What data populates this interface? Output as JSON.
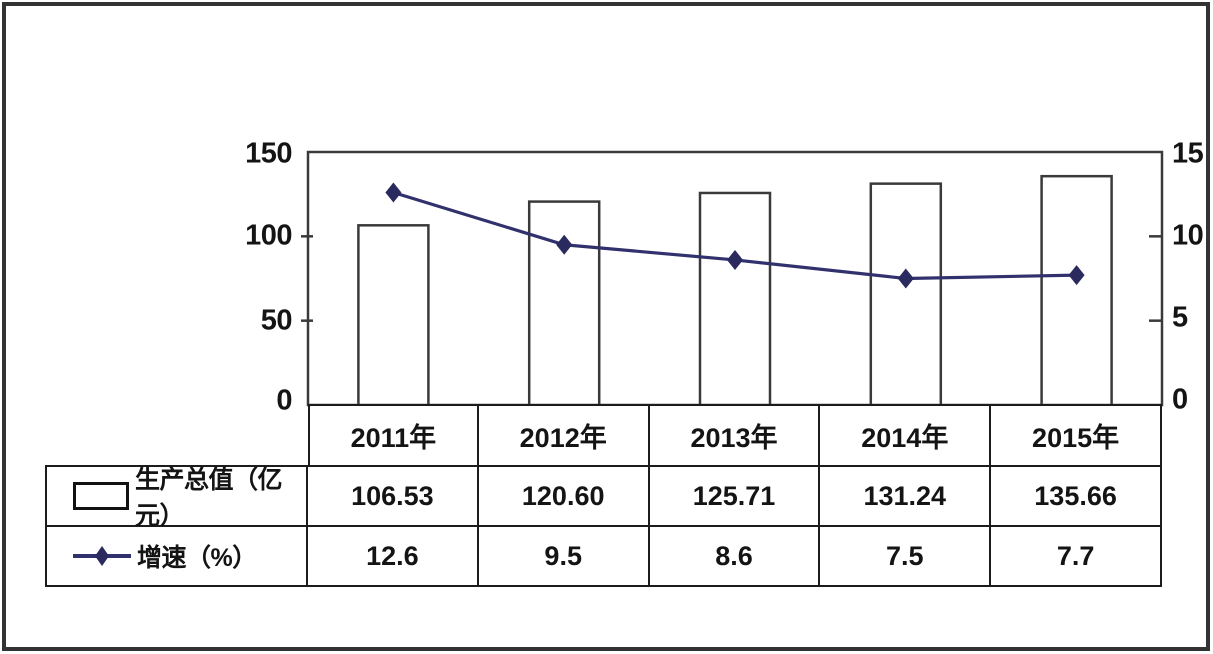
{
  "chart_data": {
    "type": "combo-bar-line",
    "categories": [
      "2011年",
      "2012年",
      "2013年",
      "2014年",
      "2015年"
    ],
    "series": [
      {
        "name": "生产总值（亿元）",
        "type": "bar",
        "axis": "left",
        "values": [
          106.53,
          120.6,
          125.71,
          131.24,
          135.66
        ]
      },
      {
        "name": "增速（%）",
        "type": "line",
        "axis": "right",
        "values": [
          12.6,
          9.5,
          8.6,
          7.5,
          7.7
        ]
      }
    ],
    "left_axis": {
      "labels": [
        "150",
        "100",
        "50",
        "0"
      ],
      "min": 0,
      "max": 150,
      "tick_values": [
        100,
        50
      ]
    },
    "right_axis": {
      "labels": [
        "15",
        "10",
        "5",
        "0"
      ],
      "min": 0,
      "max": 15,
      "tick_values": [
        10,
        5
      ]
    },
    "grid": false,
    "legend_position": "table-left-column"
  },
  "table": {
    "years": [
      "2011年",
      "2012年",
      "2013年",
      "2014年",
      "2015年"
    ],
    "rows": [
      {
        "label": "生产总值（亿元）",
        "values": [
          "106.53",
          "120.60",
          "125.71",
          "131.24",
          "135.66"
        ]
      },
      {
        "label": "增速（%）",
        "values": [
          "12.6",
          "9.5",
          "8.6",
          "7.5",
          "7.7"
        ]
      }
    ]
  },
  "colors": {
    "line": "#31316d",
    "marker": "#2a2a5e",
    "bar_fill": "#ffffff",
    "bar_border": "#3a3a3a",
    "text": "#141414",
    "frame": "#333333",
    "table_border": "#1c1c1c"
  }
}
